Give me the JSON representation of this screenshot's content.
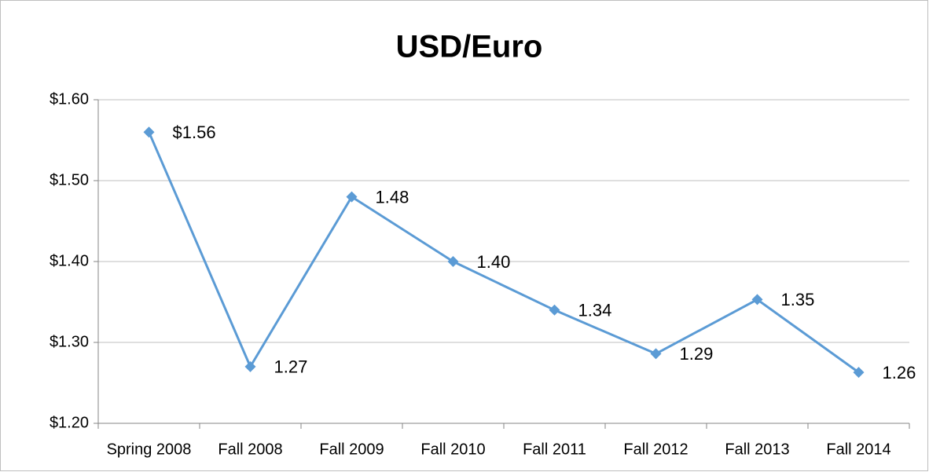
{
  "chart_data": {
    "type": "line",
    "title": "USD/Euro",
    "categories": [
      "Spring 2008",
      "Fall 2008",
      "Fall 2009",
      "Fall 2010",
      "Fall 2011",
      "Fall 2012",
      "Fall 2013",
      "Fall 2014"
    ],
    "series": [
      {
        "name": "USD/Euro",
        "color": "#5b9bd5",
        "values": [
          1.56,
          1.27,
          1.48,
          1.4,
          1.34,
          1.286,
          1.353,
          1.263
        ],
        "value_labels": [
          "$1.56",
          "1.27",
          "1.48",
          "1.40",
          "1.34",
          "1.29",
          "1.35",
          "1.26"
        ]
      }
    ],
    "ylim": [
      1.2,
      1.6
    ],
    "yticks": [
      {
        "value": 1.2,
        "label": "$1.20"
      },
      {
        "value": 1.3,
        "label": "$1.30"
      },
      {
        "value": 1.4,
        "label": "$1.40"
      },
      {
        "value": 1.5,
        "label": "$1.50"
      },
      {
        "value": 1.6,
        "label": "$1.60"
      }
    ],
    "grid": true
  }
}
